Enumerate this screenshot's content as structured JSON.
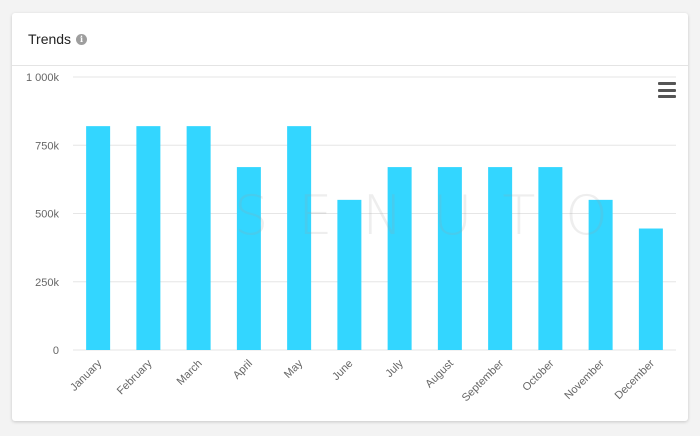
{
  "card": {
    "title": "Trends",
    "info_icon": "info-icon",
    "menu_icon": "hamburger-menu-icon"
  },
  "watermark": "SENUTO",
  "colors": {
    "bar": "#33d6ff",
    "grid": "#e6e6e6",
    "axis_text": "#666666"
  },
  "chart_data": {
    "type": "bar",
    "categories": [
      "January",
      "February",
      "March",
      "April",
      "May",
      "June",
      "July",
      "August",
      "September",
      "October",
      "November",
      "December"
    ],
    "values": [
      820000,
      820000,
      820000,
      670000,
      820000,
      550000,
      670000,
      670000,
      670000,
      670000,
      550000,
      445000
    ],
    "yticks": [
      0,
      250000,
      500000,
      750000,
      1000000
    ],
    "ytick_labels": [
      "0",
      "250k",
      "500k",
      "750k",
      "1 000k"
    ],
    "ylim": [
      0,
      1000000
    ],
    "title": "",
    "xlabel": "",
    "ylabel": "",
    "grid": true,
    "legend": false
  }
}
